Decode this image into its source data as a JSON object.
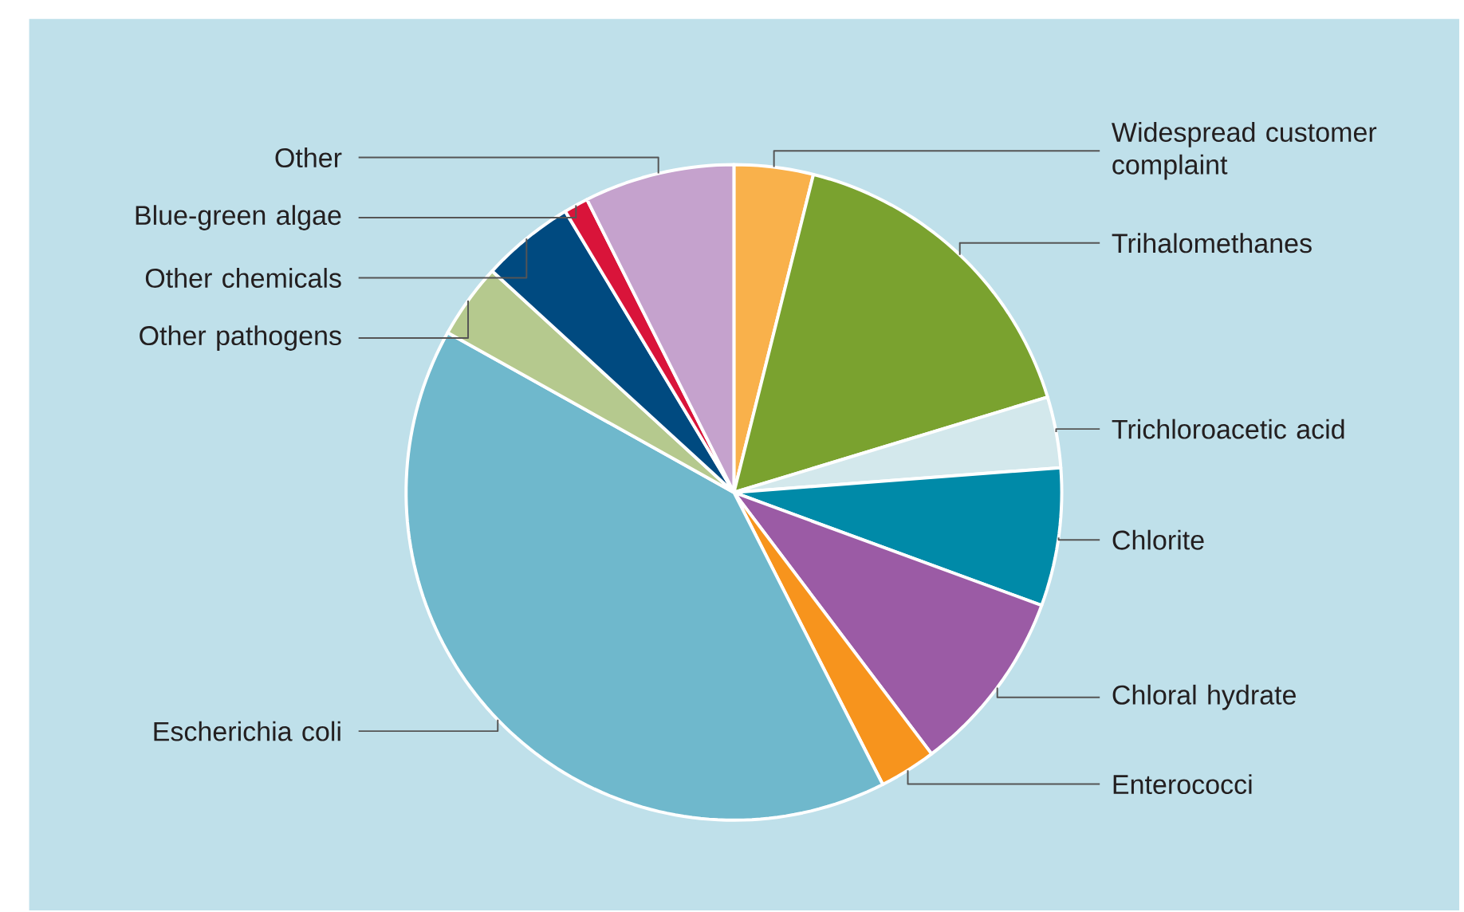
{
  "chart_data": {
    "type": "pie",
    "categories": [
      "Widespread customer complaint",
      "Trihalomethanes",
      "Trichloroacetic acid",
      "Chlorite",
      "Chloral hydrate",
      "Enterococci",
      "Escherichia coli",
      "Other pathogens",
      "Other chemicals",
      "Blue-green algae",
      "Other"
    ],
    "values": [
      3.9,
      16.4,
      3.5,
      6.8,
      9.1,
      2.8,
      40.6,
      3.7,
      4.6,
      1.2,
      7.4
    ],
    "colors": [
      "#f9b14b",
      "#7aa22f",
      "#d3e8ec",
      "#008aa8",
      "#9b5ba5",
      "#f7941d",
      "#6fb8cc",
      "#b5c98e",
      "#004a80",
      "#d9143a",
      "#c5a2cd"
    ]
  }
}
